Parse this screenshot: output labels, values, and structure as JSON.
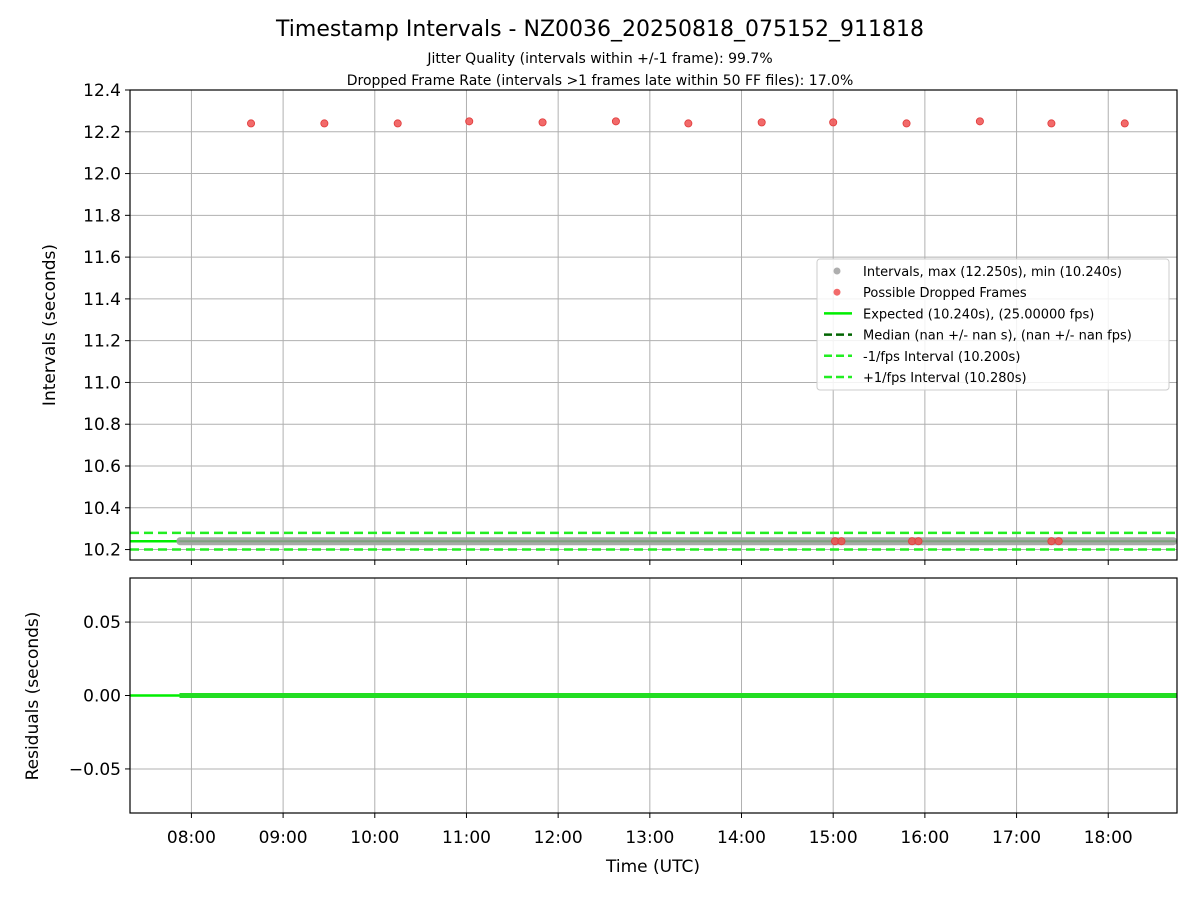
{
  "header": {
    "title": "Timestamp Intervals - NZ0036_20250818_075152_911818",
    "subtitle_1": "Jitter Quality (intervals within +/-1 frame): 99.7%",
    "subtitle_2": "Dropped Frame Rate (intervals >1 frames late within 50 FF files): 17.0%"
  },
  "colors": {
    "intervals": "#a0a0a0",
    "dropped": "#f05050",
    "expected": "#00ee00",
    "median": "#006400",
    "fps_bounds": "#22ee22",
    "residual": "#22dd22",
    "grid": "#b0b0b0"
  },
  "chart_data": [
    {
      "type": "scatter",
      "panel": "intervals",
      "ylabel": "Intervals (seconds)",
      "ylim": [
        10.15,
        12.4
      ],
      "yticks": [
        12.4,
        12.2,
        12.0,
        11.8,
        11.6,
        11.4,
        11.2,
        11.0,
        10.8,
        10.6,
        10.4,
        10.2
      ],
      "ytick_labels": [
        "12.4",
        "12.2",
        "12.0",
        "11.8",
        "11.6",
        "11.4",
        "11.2",
        "11.0",
        "10.8",
        "10.6",
        "10.4",
        "10.2"
      ],
      "xlim_hours": [
        7.33,
        18.75
      ],
      "grid": true,
      "legend_position": "center-right",
      "series": [
        {
          "name": "Intervals, max (12.250s), min (10.240s)",
          "kind": "band",
          "x_range_hours": [
            7.87,
            18.75
          ],
          "y": 10.24
        },
        {
          "name": "Possible Dropped Frames",
          "kind": "points",
          "points": [
            [
              8.65,
              12.24
            ],
            [
              9.45,
              12.24
            ],
            [
              10.25,
              12.24
            ],
            [
              11.03,
              12.25
            ],
            [
              11.83,
              12.245
            ],
            [
              12.63,
              12.25
            ],
            [
              13.42,
              12.24
            ],
            [
              14.22,
              12.245
            ],
            [
              15.0,
              12.245
            ],
            [
              15.8,
              12.24
            ],
            [
              16.6,
              12.25
            ],
            [
              17.38,
              12.24
            ],
            [
              18.18,
              12.24
            ],
            [
              15.02,
              10.24
            ],
            [
              15.09,
              10.24
            ],
            [
              15.86,
              10.24
            ],
            [
              15.93,
              10.24
            ],
            [
              17.38,
              10.24
            ],
            [
              17.46,
              10.24
            ]
          ]
        },
        {
          "name": "Expected (10.240s), (25.00000 fps)",
          "kind": "hline",
          "y": 10.24,
          "style": "solid"
        },
        {
          "name": "Median (nan +/- nan s), (nan +/- nan fps)",
          "kind": "hline",
          "y": null,
          "style": "dashed"
        },
        {
          "name": "-1/fps Interval (10.200s)",
          "kind": "hline",
          "y": 10.2,
          "style": "dashed"
        },
        {
          "name": "+1/fps Interval (10.280s)",
          "kind": "hline",
          "y": 10.28,
          "style": "dashed"
        }
      ]
    },
    {
      "type": "line",
      "panel": "residuals",
      "ylabel": "Residuals (seconds)",
      "xlabel": "Time (UTC)",
      "ylim": [
        -0.08,
        0.08
      ],
      "yticks": [
        0.05,
        0.0,
        -0.05
      ],
      "ytick_labels": [
        "0.05",
        "0.00",
        "−0.05"
      ],
      "xticks_hours": [
        8,
        9,
        10,
        11,
        12,
        13,
        14,
        15,
        16,
        17,
        18
      ],
      "xtick_labels": [
        "08:00",
        "09:00",
        "10:00",
        "11:00",
        "12:00",
        "13:00",
        "14:00",
        "15:00",
        "16:00",
        "17:00",
        "18:00"
      ],
      "xlim_hours": [
        7.33,
        18.75
      ],
      "grid": true,
      "series": [
        {
          "name": "zero",
          "kind": "hline",
          "y": 0.0
        },
        {
          "name": "residuals",
          "kind": "band",
          "x_range_hours": [
            7.87,
            18.75
          ],
          "y": 0.0
        }
      ]
    }
  ]
}
